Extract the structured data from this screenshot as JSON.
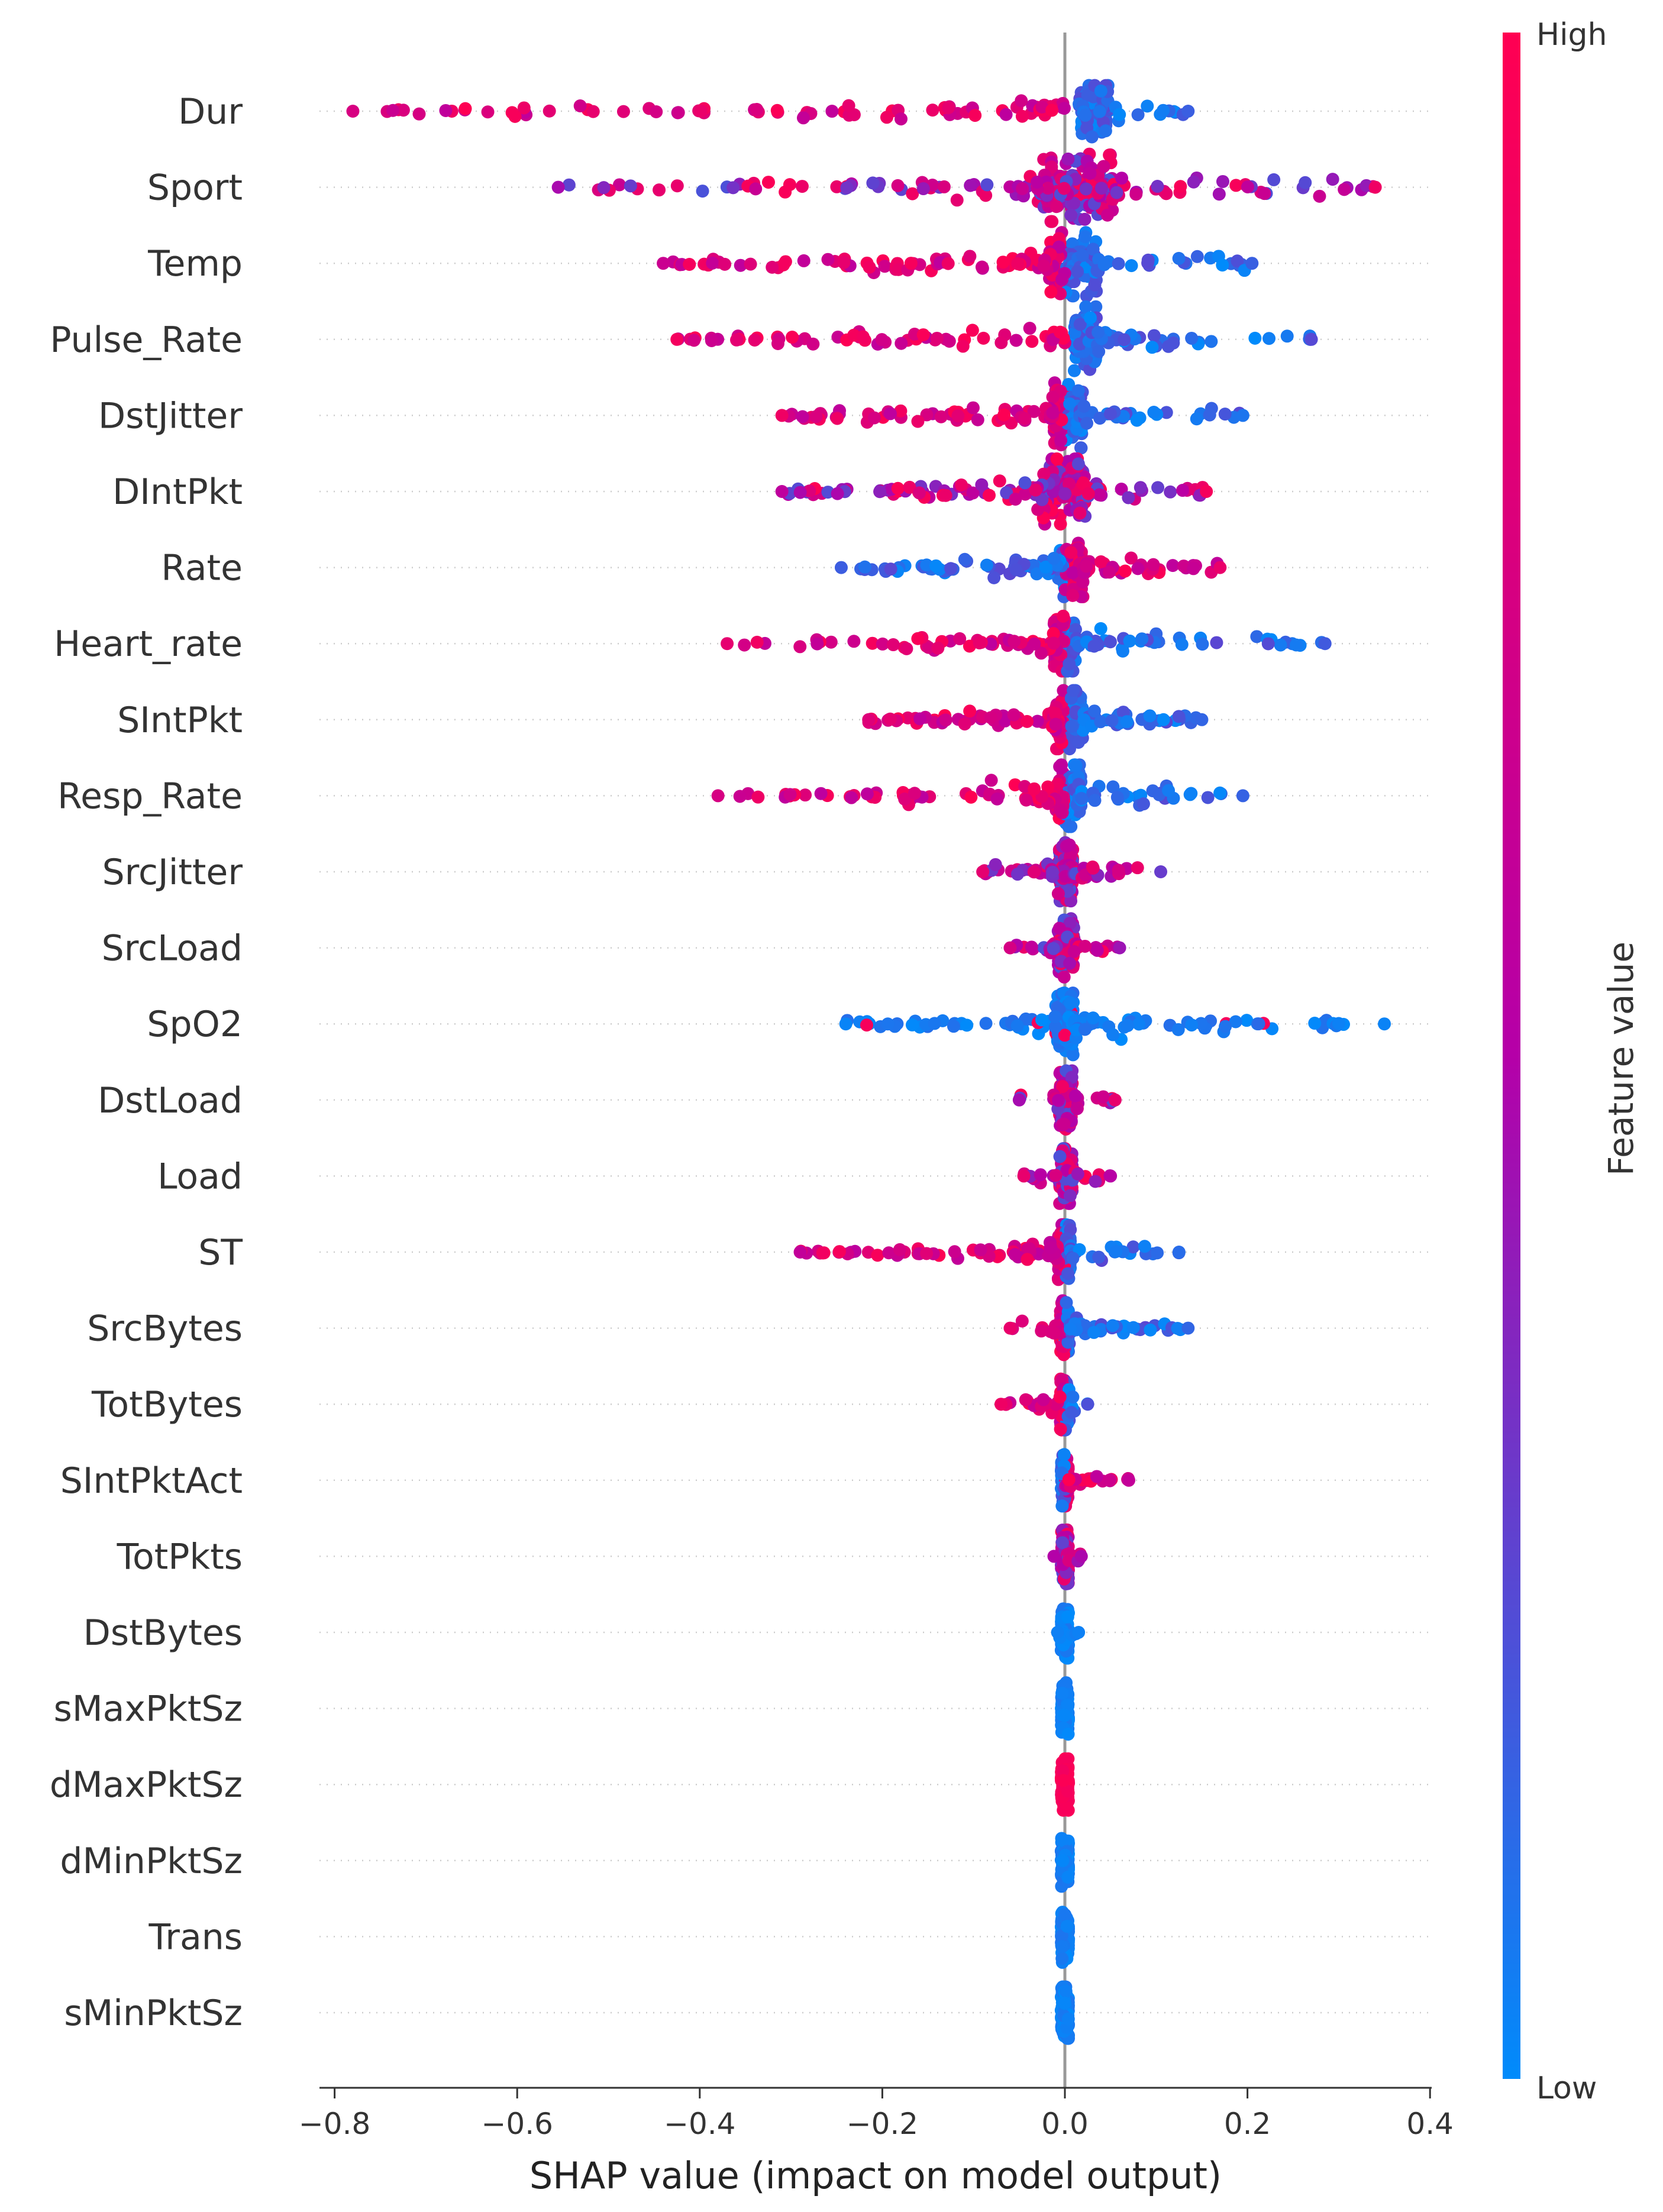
{
  "chart_data": {
    "type": "scatter",
    "subtype": "shap-beeswarm",
    "xlabel": "SHAP value (impact on model output)",
    "xlim": [
      -0.82,
      0.4
    ],
    "xticks": [
      -0.8,
      -0.6,
      -0.4,
      -0.2,
      0.0,
      0.2,
      0.4
    ],
    "xtick_labels": [
      "−0.8",
      "−0.6",
      "−0.4",
      "−0.2",
      "0.0",
      "0.2",
      "0.4"
    ],
    "zero_line": true,
    "colorbar": {
      "title": "Feature value",
      "high_label": "High",
      "low_label": "Low",
      "low_color": "#008bfb",
      "mid_color": "#b500a8",
      "high_color": "#ff0052"
    },
    "features": [
      {
        "name": "Dur",
        "min": -0.78,
        "max": 0.135,
        "core": [
          0.015,
          0.048
        ],
        "core_h": 0.75,
        "lean": "neg-high"
      },
      {
        "name": "Sport",
        "min": -0.555,
        "max": 0.34,
        "core": [
          -0.03,
          0.055
        ],
        "core_h": 1.0,
        "lean": "mixed"
      },
      {
        "name": "Temp",
        "min": -0.44,
        "max": 0.205,
        "core": [
          -0.02,
          0.035
        ],
        "core_h": 0.95,
        "lean": "neg-high"
      },
      {
        "name": "Pulse_Rate",
        "min": -0.425,
        "max": 0.27,
        "core": [
          0.01,
          0.035
        ],
        "core_h": 0.95,
        "lean": "neg-high"
      },
      {
        "name": "DstJitter",
        "min": -0.31,
        "max": 0.195,
        "core": [
          -0.012,
          0.02
        ],
        "core_h": 0.95,
        "lean": "neg-high"
      },
      {
        "name": "DIntPkt",
        "min": -0.31,
        "max": 0.155,
        "core": [
          -0.025,
          0.025
        ],
        "core_h": 0.95,
        "lean": "mixed"
      },
      {
        "name": "Rate",
        "min": -0.245,
        "max": 0.17,
        "core": [
          -0.008,
          0.02
        ],
        "core_h": 0.85,
        "lean": "pos-high"
      },
      {
        "name": "Heart_rate",
        "min": -0.37,
        "max": 0.285,
        "core": [
          -0.012,
          0.012
        ],
        "core_h": 0.8,
        "lean": "neg-high"
      },
      {
        "name": "SIntPkt",
        "min": -0.215,
        "max": 0.15,
        "core": [
          -0.01,
          0.02
        ],
        "core_h": 0.85,
        "lean": "neg-high"
      },
      {
        "name": "Resp_Rate",
        "min": -0.38,
        "max": 0.195,
        "core": [
          -0.01,
          0.018
        ],
        "core_h": 0.9,
        "lean": "neg-high"
      },
      {
        "name": "SrcJitter",
        "min": -0.09,
        "max": 0.105,
        "core": [
          -0.008,
          0.01
        ],
        "core_h": 0.85,
        "lean": "mixed"
      },
      {
        "name": "SrcLoad",
        "min": -0.06,
        "max": 0.06,
        "core": [
          -0.008,
          0.01
        ],
        "core_h": 0.85,
        "lean": "mixed"
      },
      {
        "name": "SpO2",
        "min": -0.24,
        "max": 0.35,
        "core": [
          -0.01,
          0.01
        ],
        "core_h": 0.9,
        "lean": "low-both"
      },
      {
        "name": "DstLoad",
        "min": -0.05,
        "max": 0.055,
        "core": [
          -0.006,
          0.008
        ],
        "core_h": 0.85,
        "lean": "mixed"
      },
      {
        "name": "Load",
        "min": -0.045,
        "max": 0.05,
        "core": [
          -0.006,
          0.008
        ],
        "core_h": 0.8,
        "lean": "mixed"
      },
      {
        "name": "ST",
        "min": -0.29,
        "max": 0.125,
        "core": [
          -0.008,
          0.006
        ],
        "core_h": 0.8,
        "lean": "neg-high"
      },
      {
        "name": "SrcBytes",
        "min": -0.06,
        "max": 0.135,
        "core": [
          -0.005,
          0.005
        ],
        "core_h": 0.8,
        "lean": "neg-high"
      },
      {
        "name": "TotBytes",
        "min": -0.07,
        "max": 0.025,
        "core": [
          -0.005,
          0.005
        ],
        "core_h": 0.75,
        "lean": "neg-high"
      },
      {
        "name": "SIntPktAct",
        "min": -0.004,
        "max": 0.07,
        "core": [
          -0.004,
          0.004
        ],
        "core_h": 0.75,
        "lean": "pos-high"
      },
      {
        "name": "TotPkts",
        "min": -0.012,
        "max": 0.018,
        "core": [
          -0.004,
          0.004
        ],
        "core_h": 0.8,
        "lean": "mixed"
      },
      {
        "name": "DstBytes",
        "min": -0.008,
        "max": 0.015,
        "core": [
          -0.004,
          0.004
        ],
        "core_h": 0.75,
        "lean": "low"
      },
      {
        "name": "sMaxPktSz",
        "min": -0.004,
        "max": 0.004,
        "core": [
          -0.004,
          0.004
        ],
        "core_h": 0.75,
        "lean": "low"
      },
      {
        "name": "dMaxPktSz",
        "min": -0.004,
        "max": 0.004,
        "core": [
          -0.004,
          0.004
        ],
        "core_h": 0.75,
        "lean": "high"
      },
      {
        "name": "dMinPktSz",
        "min": -0.004,
        "max": 0.004,
        "core": [
          -0.004,
          0.004
        ],
        "core_h": 0.75,
        "lean": "low"
      },
      {
        "name": "Trans",
        "min": -0.004,
        "max": 0.004,
        "core": [
          -0.004,
          0.004
        ],
        "core_h": 0.75,
        "lean": "low"
      },
      {
        "name": "sMinPktSz",
        "min": -0.004,
        "max": 0.004,
        "core": [
          -0.004,
          0.004
        ],
        "core_h": 0.75,
        "lean": "low"
      }
    ]
  }
}
